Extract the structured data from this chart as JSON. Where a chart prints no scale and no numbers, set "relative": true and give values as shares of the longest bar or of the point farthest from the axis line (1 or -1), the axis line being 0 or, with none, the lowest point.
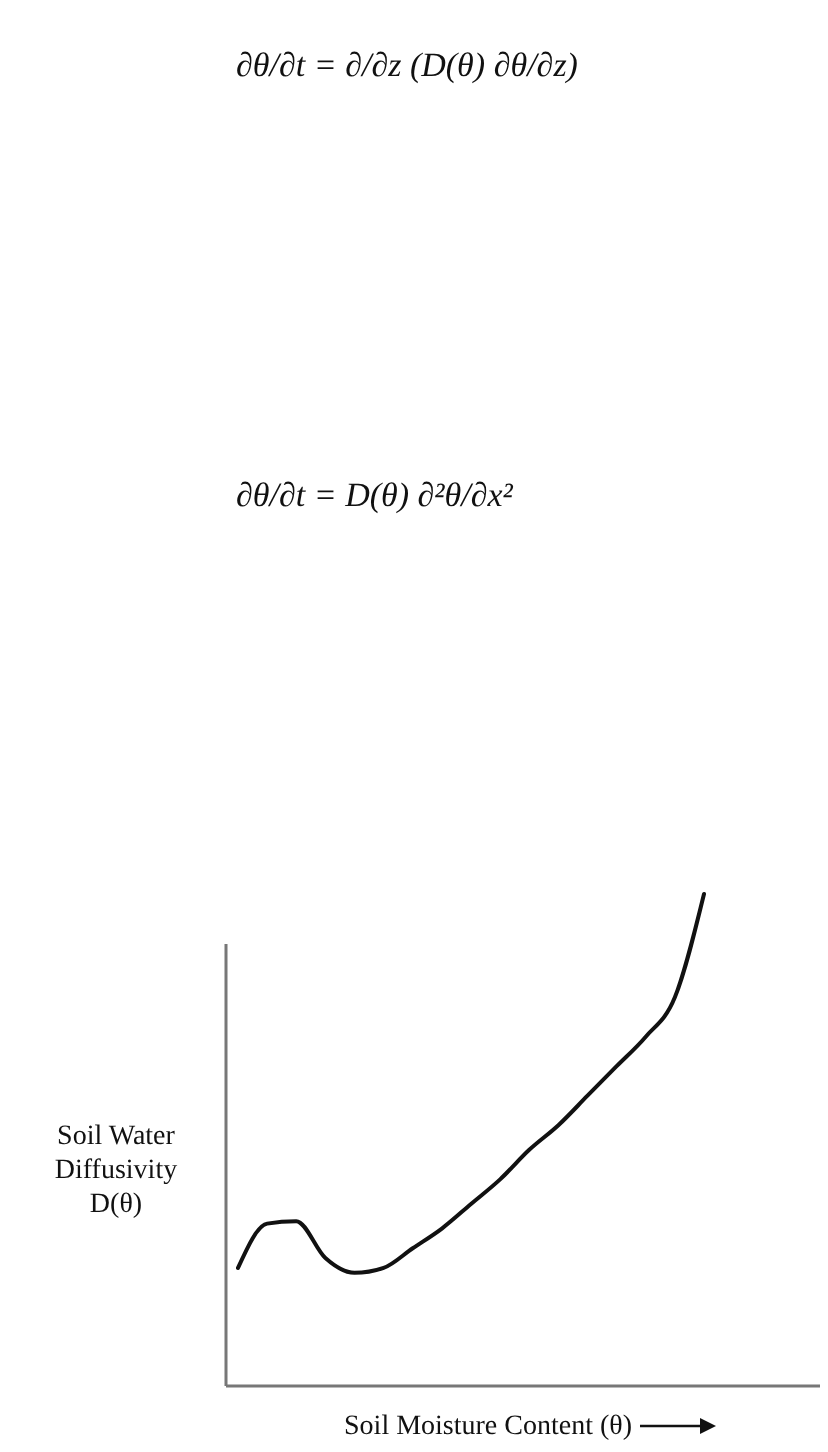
{
  "chart_data": {
    "type": "line",
    "relative": true,
    "xlabel": "Soil Moisture Content (θ)",
    "ylabel": "Soil Water Diffusivity D(θ)",
    "annotations": [
      "∂θ/∂t = ∂/∂z (D(θ) ∂θ/∂z)",
      "∂θ/∂t = D(θ) ∂²θ/∂x²"
    ],
    "categories": [
      null,
      null,
      null,
      null,
      null,
      null,
      null,
      null,
      null,
      null,
      null,
      null,
      null,
      null,
      null,
      null,
      null
    ],
    "series": [
      {
        "color": "#111111",
        "values": [
          0.24,
          0.33,
          0.335,
          0.26,
          0.23,
          0.24,
          0.28,
          0.32,
          0.37,
          0.42,
          0.48,
          0.53,
          0.59,
          0.65,
          0.71,
          0.79,
          1
        ]
      }
    ],
    "line_style": "solid",
    "marker": "none"
  }
}
